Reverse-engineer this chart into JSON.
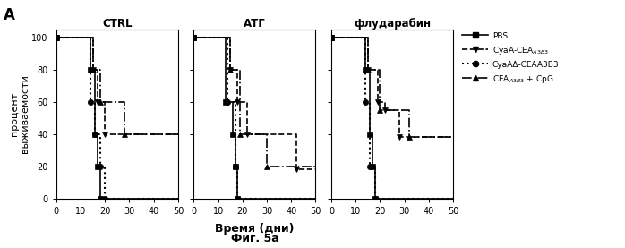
{
  "panel_titles": [
    "CTRL",
    "АТГ",
    "флударабин"
  ],
  "ylabel": "процент\nвыживаемости",
  "xlabel": "Время (дни)",
  "fig_label": "А",
  "fig_caption": "Фиг. 5а",
  "xlim": [
    0,
    50
  ],
  "ylim": [
    0,
    105
  ],
  "xticks": [
    0,
    10,
    20,
    30,
    40,
    50
  ],
  "yticks": [
    0,
    20,
    40,
    60,
    80,
    100
  ],
  "legend_labels": [
    "PBS",
    "СуаА-CEA$_{A3B3}$",
    "СуаАΔ-CEAA3B3",
    "CEA$_{A3B3}$ + CpG"
  ],
  "series": {
    "PBS": {
      "style": "-",
      "marker": "s",
      "lw": 1.2,
      "ctrl": [
        [
          0,
          100
        ],
        [
          14,
          100
        ],
        [
          14,
          80
        ],
        [
          16,
          80
        ],
        [
          16,
          40
        ],
        [
          17,
          40
        ],
        [
          17,
          20
        ],
        [
          18,
          20
        ],
        [
          18,
          0
        ],
        [
          50,
          0
        ]
      ],
      "atg": [
        [
          0,
          100
        ],
        [
          13,
          100
        ],
        [
          13,
          60
        ],
        [
          16,
          60
        ],
        [
          16,
          40
        ],
        [
          17,
          40
        ],
        [
          17,
          20
        ],
        [
          18,
          20
        ],
        [
          18,
          0
        ],
        [
          50,
          0
        ]
      ],
      "flud": [
        [
          0,
          100
        ],
        [
          14,
          100
        ],
        [
          14,
          80
        ],
        [
          16,
          80
        ],
        [
          16,
          40
        ],
        [
          17,
          40
        ],
        [
          17,
          20
        ],
        [
          18,
          20
        ],
        [
          18,
          0
        ],
        [
          50,
          0
        ]
      ]
    },
    "CyaA": {
      "style": "--",
      "marker": "v",
      "lw": 1.2,
      "ctrl": [
        [
          0,
          100
        ],
        [
          15,
          100
        ],
        [
          15,
          80
        ],
        [
          17,
          80
        ],
        [
          17,
          60
        ],
        [
          20,
          60
        ],
        [
          20,
          40
        ],
        [
          50,
          40
        ]
      ],
      "atg": [
        [
          0,
          100
        ],
        [
          15,
          100
        ],
        [
          15,
          80
        ],
        [
          18,
          80
        ],
        [
          18,
          60
        ],
        [
          22,
          60
        ],
        [
          22,
          40
        ],
        [
          42,
          40
        ],
        [
          42,
          18
        ],
        [
          50,
          18
        ]
      ],
      "flud": [
        [
          0,
          100
        ],
        [
          15,
          100
        ],
        [
          15,
          80
        ],
        [
          19,
          80
        ],
        [
          19,
          60
        ],
        [
          22,
          60
        ],
        [
          22,
          55
        ],
        [
          28,
          55
        ],
        [
          28,
          38
        ],
        [
          50,
          38
        ]
      ]
    },
    "CyaAd": {
      "style": ":",
      "marker": "o",
      "lw": 1.5,
      "ctrl": [
        [
          0,
          100
        ],
        [
          14,
          100
        ],
        [
          14,
          60
        ],
        [
          16,
          60
        ],
        [
          16,
          40
        ],
        [
          18,
          40
        ],
        [
          18,
          20
        ],
        [
          20,
          20
        ],
        [
          20,
          0
        ],
        [
          50,
          0
        ]
      ],
      "atg": [
        [
          0,
          100
        ],
        [
          14,
          100
        ],
        [
          14,
          60
        ],
        [
          17,
          60
        ],
        [
          17,
          20
        ],
        [
          18,
          20
        ],
        [
          18,
          0
        ],
        [
          50,
          0
        ]
      ],
      "flud": [
        [
          0,
          100
        ],
        [
          14,
          100
        ],
        [
          14,
          60
        ],
        [
          16,
          60
        ],
        [
          16,
          20
        ],
        [
          18,
          20
        ],
        [
          18,
          0
        ],
        [
          50,
          0
        ]
      ]
    },
    "CEA_CpG": {
      "style": "-.",
      "marker": "^",
      "lw": 1.2,
      "ctrl": [
        [
          0,
          100
        ],
        [
          15,
          100
        ],
        [
          15,
          80
        ],
        [
          18,
          80
        ],
        [
          18,
          60
        ],
        [
          28,
          60
        ],
        [
          28,
          40
        ],
        [
          50,
          40
        ]
      ],
      "atg": [
        [
          0,
          100
        ],
        [
          15,
          100
        ],
        [
          15,
          80
        ],
        [
          19,
          80
        ],
        [
          19,
          40
        ],
        [
          30,
          40
        ],
        [
          30,
          20
        ],
        [
          50,
          20
        ]
      ],
      "flud": [
        [
          0,
          100
        ],
        [
          15,
          100
        ],
        [
          15,
          80
        ],
        [
          20,
          80
        ],
        [
          20,
          55
        ],
        [
          32,
          55
        ],
        [
          32,
          38
        ],
        [
          50,
          38
        ]
      ]
    }
  }
}
